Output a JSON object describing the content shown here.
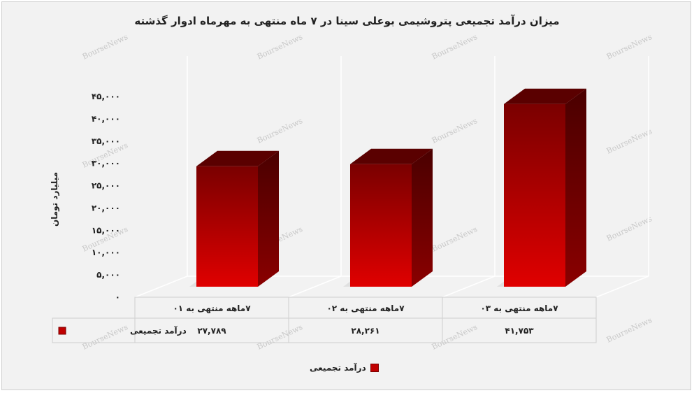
{
  "chart_data": {
    "type": "bar",
    "title": "میزان درآمد تجمیعی پتروشیمی بوعلی سینا در ۷ ماه منتهی به مهرماه ادوار گذشته",
    "ylabel": "میلیارد تومان",
    "xlabel": "",
    "categories": [
      "۷ماهه منتهی به ۰۱",
      "۷ماهه منتهی به ۰۲",
      "۷ماهه منتهی به ۰۳"
    ],
    "series": [
      {
        "name": "درآمد تجمیعی",
        "values": [
          27789,
          28261,
          41753
        ],
        "value_labels": [
          "۲۷,۷۸۹",
          "۲۸,۲۶۱",
          "۴۱,۷۵۳"
        ],
        "color": "#c00000"
      }
    ],
    "ylim": [
      0,
      45000
    ],
    "yticks": [
      0,
      5000,
      10000,
      15000,
      20000,
      25000,
      30000,
      35000,
      40000,
      45000
    ],
    "ytick_labels": [
      "۰",
      "۵,۰۰۰",
      "۱۰,۰۰۰",
      "۱۵,۰۰۰",
      "۲۰,۰۰۰",
      "۲۵,۰۰۰",
      "۳۰,۰۰۰",
      "۳۵,۰۰۰",
      "۴۰,۰۰۰",
      "۴۵,۰۰۰"
    ],
    "grid": false,
    "data_table": true,
    "legend": "bottom",
    "style": "3d"
  },
  "watermark": "BourseNews"
}
